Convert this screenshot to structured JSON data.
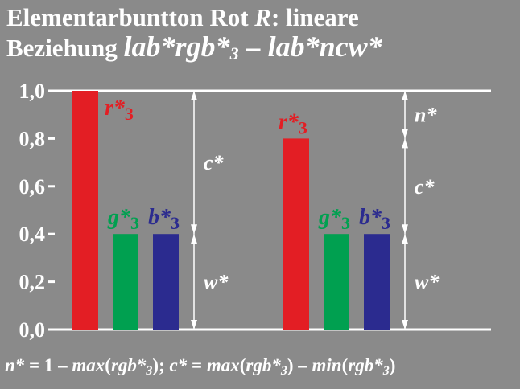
{
  "title": {
    "line1_a": "Elementarbuntton Rot ",
    "line1_b": "R",
    "line1_c": ": lineare",
    "line2_a": "Beziehung ",
    "line2_b": "lab*rgb*",
    "line2_sub": "3",
    "line2_c": " – lab*ncw*"
  },
  "footer": {
    "p1": "n*",
    "p2": " = 1 – ",
    "p3": "max",
    "p4": "(",
    "p5": "rgb*",
    "p6": "3",
    "p7": ");  ",
    "p8": "c*",
    "p9": " = ",
    "p10": "max",
    "p11": "(",
    "p12": "rgb*",
    "p13": "3",
    "p14": ") – ",
    "p15": "min",
    "p16": "(",
    "p17": "rgb*",
    "p18": "3",
    "p19": ")"
  },
  "colors": {
    "background": "#8a8a8a",
    "text": "#ffffff",
    "red": "#e31e24",
    "green": "#00a050",
    "blue": "#2b2b8f"
  },
  "chart_data": {
    "type": "bar",
    "ylim": [
      0,
      1.0
    ],
    "y_ticks": [
      "0,0",
      "0,2",
      "0,4",
      "0,6",
      "0,8",
      "1,0"
    ],
    "grid": "horizontal at 0 and 1.0",
    "groups": [
      {
        "bars": [
          {
            "label": "r*",
            "sub": "3",
            "value": 1.0,
            "color": "red"
          },
          {
            "label": "g*",
            "sub": "3",
            "value": 0.4,
            "color": "green"
          },
          {
            "label": "b*",
            "sub": "3",
            "value": 0.4,
            "color": "blue"
          }
        ],
        "brackets": [
          {
            "label": "c*",
            "from": 0.4,
            "to": 1.0
          },
          {
            "label": "w*",
            "from": 0.0,
            "to": 0.4
          }
        ]
      },
      {
        "bars": [
          {
            "label": "r*",
            "sub": "3",
            "value": 0.8,
            "color": "red"
          },
          {
            "label": "g*",
            "sub": "3",
            "value": 0.4,
            "color": "green"
          },
          {
            "label": "b*",
            "sub": "3",
            "value": 0.4,
            "color": "blue"
          }
        ],
        "brackets": [
          {
            "label": "n*",
            "from": 0.8,
            "to": 1.0
          },
          {
            "label": "c*",
            "from": 0.4,
            "to": 0.8
          },
          {
            "label": "w*",
            "from": 0.0,
            "to": 0.4
          }
        ]
      }
    ]
  }
}
